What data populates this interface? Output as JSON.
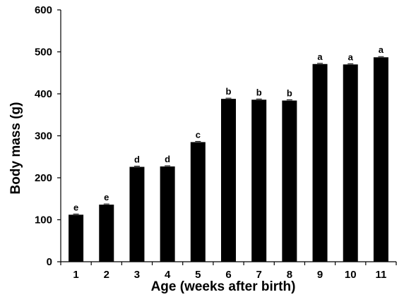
{
  "chart_data": {
    "type": "bar",
    "title": "",
    "xlabel": "Age (weeks after birth)",
    "ylabel": "Body mass (g)",
    "ylim": [
      0,
      600
    ],
    "yticks": [
      0,
      100,
      200,
      300,
      400,
      500,
      600
    ],
    "categories": [
      "1",
      "2",
      "3",
      "4",
      "5",
      "6",
      "7",
      "8",
      "9",
      "10",
      "11"
    ],
    "values": [
      112,
      136,
      226,
      227,
      285,
      388,
      386,
      384,
      471,
      470,
      487
    ],
    "significance_letters": [
      "e",
      "e",
      "d",
      "d",
      "c",
      "b",
      "b",
      "b",
      "a",
      "a",
      "a"
    ],
    "bar_color": "#000000",
    "grid": false,
    "legend": "none"
  }
}
